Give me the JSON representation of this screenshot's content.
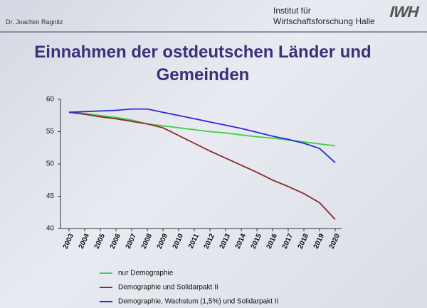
{
  "chart_data": {
    "type": "line",
    "author": "Dr. Joachim Ragnitz",
    "institute": [
      "Institut für",
      "Wirtschaftsforschung Halle"
    ],
    "logo": "IWH",
    "title": "Einnahmen der ostdeutschen Länder und Gemeinden",
    "categories": [
      "2003",
      "2004",
      "2005",
      "2006",
      "2007",
      "2008",
      "2009",
      "2010",
      "2011",
      "2012",
      "2013",
      "2014",
      "2015",
      "2016",
      "2017",
      "2018",
      "2019",
      "2020"
    ],
    "ylim": [
      40,
      60
    ],
    "yticks": [
      40,
      45,
      50,
      55,
      60
    ],
    "legend": "bottom",
    "series": [
      {
        "name": "nur Demographie",
        "color": "#3fcf3f",
        "values": [
          58,
          57.8,
          57.5,
          57.2,
          56.8,
          56.2,
          55.9,
          55.6,
          55.3,
          55.0,
          54.8,
          54.5,
          54.2,
          54.0,
          53.7,
          53.4,
          53.1,
          52.8
        ]
      },
      {
        "name": "Demographie und Solidarpakt II",
        "color": "#8b2a2a",
        "values": [
          58,
          57.7,
          57.3,
          57.0,
          56.6,
          56.2,
          55.6,
          54.4,
          53.2,
          52.0,
          50.9,
          49.8,
          48.7,
          47.5,
          46.5,
          45.4,
          44.0,
          41.4
        ]
      },
      {
        "name": "Demographie, Wachstum (1,5%) und Solidarpakt II",
        "color": "#2a2ad8",
        "values": [
          58,
          58.1,
          58.2,
          58.3,
          58.5,
          58.5,
          58.0,
          57.5,
          57.0,
          56.5,
          56.0,
          55.5,
          54.9,
          54.3,
          53.8,
          53.2,
          52.4,
          50.2
        ]
      }
    ]
  }
}
